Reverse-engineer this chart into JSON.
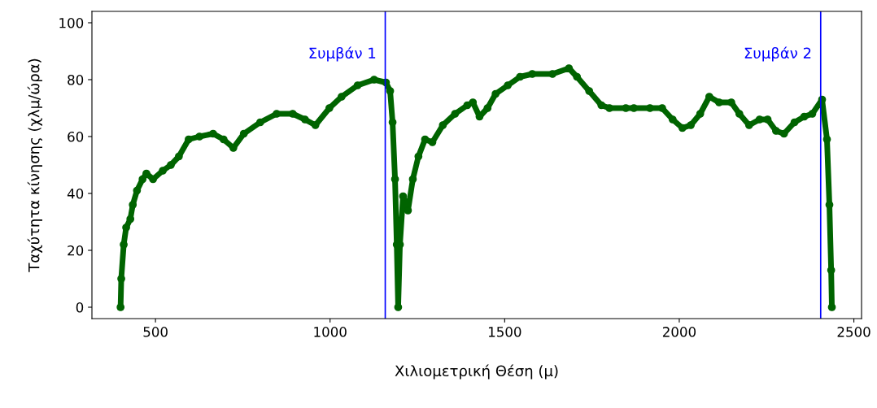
{
  "chart_data": {
    "type": "line",
    "xlabel": "Χιλιομετρική Θέση (μ)",
    "ylabel": "Ταχύτητα κίνησης (χλμ/ώρα)",
    "xlim": [
      318,
      2522
    ],
    "ylim": [
      -4,
      104
    ],
    "xticks": [
      500,
      1000,
      1500,
      2000,
      2500
    ],
    "yticks": [
      0,
      20,
      40,
      60,
      80,
      100
    ],
    "grid": false,
    "legend": false,
    "marker": "circle",
    "line_style": "solid",
    "series": [
      {
        "color": "#006400",
        "x": [
          400,
          402,
          409,
          416,
          428,
          435,
          447,
          463,
          474,
          493,
          521,
          544,
          567,
          595,
          626,
          665,
          695,
          723,
          753,
          800,
          847,
          893,
          928,
          958,
          998,
          1033,
          1079,
          1126,
          1160,
          1172,
          1179,
          1186,
          1191,
          1195,
          1200,
          1209,
          1223,
          1237,
          1253,
          1272,
          1293,
          1323,
          1358,
          1393,
          1409,
          1428,
          1451,
          1474,
          1509,
          1544,
          1579,
          1637,
          1684,
          1707,
          1742,
          1777,
          1800,
          1847,
          1870,
          1916,
          1951,
          1981,
          2009,
          2033,
          2060,
          2086,
          2114,
          2149,
          2172,
          2200,
          2230,
          2253,
          2277,
          2300,
          2330,
          2358,
          2381,
          2409,
          2423,
          2430,
          2435,
          2437
        ],
        "values": [
          0,
          10,
          22,
          28,
          31,
          36,
          41,
          45,
          47,
          45,
          48,
          50,
          53,
          59,
          60,
          61,
          59,
          56,
          61,
          65,
          68,
          68,
          66,
          64,
          70,
          74,
          78,
          80,
          79,
          76,
          65,
          45,
          22,
          0,
          22,
          39,
          34,
          45,
          53,
          59,
          58,
          64,
          68,
          71,
          72,
          67,
          70,
          75,
          78,
          81,
          82,
          82,
          84,
          81,
          76,
          71,
          70,
          70,
          70,
          70,
          70,
          66,
          63,
          64,
          68,
          74,
          72,
          72,
          68,
          64,
          66,
          66,
          62,
          61,
          65,
          67,
          68,
          73,
          59,
          36,
          13,
          0
        ]
      }
    ],
    "ref_lines": [
      {
        "axis": "x",
        "value": 1158,
        "label": "Συμβάν 1",
        "color": "#0000ff"
      },
      {
        "axis": "x",
        "value": 2405,
        "label": "Συμβάν 2",
        "color": "#0000ff"
      }
    ]
  }
}
